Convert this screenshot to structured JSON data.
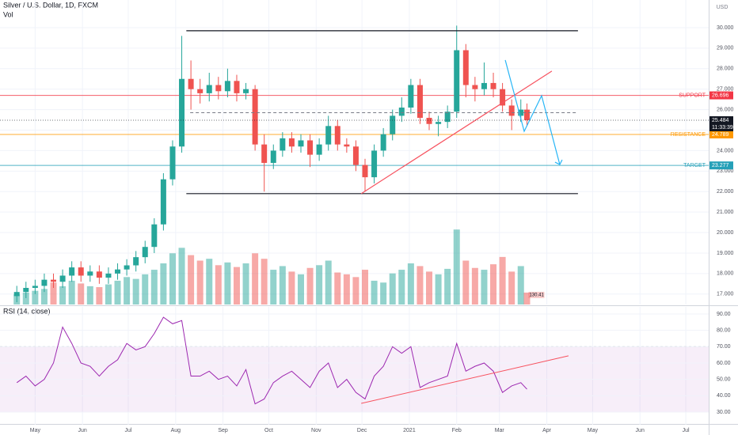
{
  "chart_data": {
    "type": "candlestick",
    "title": "Silver / U.S. Dollar, 1D, FXCM",
    "volume_title": "Vol",
    "currency": "USD",
    "countdown": "11:33:39",
    "grid": true,
    "up_color": "#26a69a",
    "down_color": "#ef5350",
    "xlim": [
      7,
      471
    ],
    "xticks": [
      {
        "value": 30,
        "label": "May"
      },
      {
        "value": 61,
        "label": "Jun"
      },
      {
        "value": 91,
        "label": "Jul"
      },
      {
        "value": 122,
        "label": "Aug"
      },
      {
        "value": 153,
        "label": "Sep"
      },
      {
        "value": 183,
        "label": "Oct"
      },
      {
        "value": 214,
        "label": "Nov"
      },
      {
        "value": 244,
        "label": "Dec"
      },
      {
        "value": 275,
        "label": "2021"
      },
      {
        "value": 306,
        "label": "Feb"
      },
      {
        "value": 334,
        "label": "Mar"
      },
      {
        "value": 365,
        "label": "Apr"
      },
      {
        "value": 395,
        "label": "May"
      },
      {
        "value": 426,
        "label": "Jun"
      },
      {
        "value": 456,
        "label": "Jul"
      }
    ],
    "ylim": [
      16.49,
      31.35
    ],
    "yticks": [
      {
        "value": 17,
        "label": "17.000"
      },
      {
        "value": 18,
        "label": "18.000"
      },
      {
        "value": 19,
        "label": "19.000"
      },
      {
        "value": 20,
        "label": "20.000"
      },
      {
        "value": 21,
        "label": "21.000"
      },
      {
        "value": 22,
        "label": "22.000"
      },
      {
        "value": 23,
        "label": "23.000"
      },
      {
        "value": 24,
        "label": "24.000"
      },
      {
        "value": 25,
        "label": "25.000"
      },
      {
        "value": 26,
        "label": "26.000"
      },
      {
        "value": 27,
        "label": "27.000"
      },
      {
        "value": 28,
        "label": "28.000"
      },
      {
        "value": 29,
        "label": "29.000"
      },
      {
        "value": 30,
        "label": "30.000"
      }
    ],
    "x": [
      18,
      24,
      30,
      36,
      42,
      48,
      54,
      60,
      66,
      72,
      78,
      84,
      90,
      96,
      102,
      108,
      114,
      120,
      126,
      132,
      138,
      144,
      150,
      156,
      162,
      168,
      174,
      180,
      186,
      192,
      198,
      204,
      210,
      216,
      222,
      228,
      234,
      240,
      246,
      252,
      258,
      264,
      270,
      276,
      282,
      288,
      294,
      300,
      306,
      312,
      318,
      324,
      330,
      336,
      342,
      348,
      352
    ],
    "open": [
      16.9,
      17.1,
      17.3,
      17.4,
      17.7,
      17.6,
      17.9,
      18.3,
      17.9,
      18.1,
      17.8,
      18.0,
      18.2,
      18.4,
      18.8,
      19.3,
      20.4,
      22.6,
      24.2,
      27.5,
      27.0,
      26.8,
      27.2,
      26.9,
      27.4,
      26.8,
      27.0,
      24.3,
      23.4,
      24.0,
      24.6,
      24.2,
      24.5,
      23.8,
      24.3,
      25.2,
      24.3,
      24.2,
      23.3,
      22.7,
      24.0,
      24.8,
      25.7,
      26.1,
      27.2,
      25.6,
      25.3,
      25.4,
      25.9,
      28.9,
      27.2,
      27.0,
      27.3,
      27.0,
      26.2,
      25.7,
      26.0
    ],
    "high": [
      17.4,
      17.6,
      17.7,
      18.0,
      18.0,
      18.2,
      18.6,
      18.6,
      18.4,
      18.4,
      18.3,
      18.5,
      18.7,
      19.1,
      19.6,
      20.7,
      22.9,
      24.5,
      29.6,
      28.4,
      27.5,
      27.8,
      27.6,
      28.0,
      27.7,
      27.3,
      27.2,
      24.8,
      24.3,
      24.9,
      24.9,
      24.8,
      24.8,
      24.6,
      25.7,
      25.5,
      24.6,
      24.5,
      23.6,
      24.3,
      25.1,
      26.0,
      26.6,
      27.5,
      27.5,
      25.9,
      25.7,
      26.2,
      30.1,
      29.2,
      27.6,
      28.3,
      27.8,
      27.3,
      26.5,
      26.5,
      26.3
    ],
    "low": [
      16.6,
      16.8,
      17.0,
      17.1,
      17.3,
      17.3,
      17.6,
      17.6,
      17.6,
      17.5,
      17.5,
      17.7,
      17.9,
      18.1,
      18.5,
      19.0,
      20.1,
      22.3,
      23.9,
      26.0,
      26.3,
      26.4,
      26.5,
      26.6,
      26.4,
      26.5,
      24.0,
      22.0,
      23.1,
      23.7,
      23.9,
      23.9,
      23.2,
      23.5,
      24.0,
      24.0,
      23.9,
      23.0,
      22.0,
      22.4,
      23.7,
      24.5,
      25.4,
      25.8,
      25.3,
      25.0,
      24.7,
      25.1,
      25.6,
      26.6,
      26.4,
      26.7,
      26.6,
      25.9,
      25.0,
      25.4,
      25.2
    ],
    "close": [
      17.1,
      17.3,
      17.4,
      17.7,
      17.6,
      17.9,
      18.3,
      17.9,
      18.1,
      17.8,
      18.0,
      18.2,
      18.4,
      18.8,
      19.3,
      20.4,
      22.6,
      24.2,
      27.5,
      27.0,
      26.8,
      27.2,
      26.9,
      27.4,
      26.8,
      27.0,
      24.3,
      23.4,
      24.0,
      24.6,
      24.2,
      24.5,
      23.8,
      24.3,
      25.2,
      24.3,
      24.2,
      23.3,
      22.7,
      24.0,
      24.8,
      25.7,
      26.1,
      27.2,
      25.6,
      25.3,
      25.4,
      25.9,
      28.9,
      27.2,
      27.0,
      27.3,
      27.0,
      26.2,
      25.7,
      26.0,
      25.484
    ],
    "volume": [
      110,
      130,
      150,
      170,
      240,
      200,
      260,
      230,
      200,
      190,
      220,
      260,
      300,
      280,
      330,
      380,
      450,
      560,
      620,
      540,
      480,
      500,
      430,
      460,
      410,
      450,
      560,
      500,
      380,
      420,
      360,
      330,
      400,
      430,
      480,
      350,
      330,
      300,
      380,
      260,
      240,
      340,
      380,
      450,
      420,
      360,
      330,
      390,
      820,
      480,
      400,
      380,
      440,
      520,
      360,
      420,
      130.41
    ],
    "volume_lim": [
      0,
      3330
    ],
    "levels": [
      {
        "name": "SUPPORT",
        "value": 26.696,
        "color": "#f23645"
      },
      {
        "name": "RESISTANCE",
        "value": 24.789,
        "color": "#ff9800"
      },
      {
        "name": "TARGET",
        "value": 23.277,
        "color": "#26a0b8"
      }
    ],
    "drawings": [
      {
        "x": [
          129,
          385.4
        ],
        "y": [
          29.85,
          29.85
        ],
        "color": "#131722",
        "dash": false
      },
      {
        "x": [
          129,
          385.4
        ],
        "y": [
          21.9,
          21.9
        ],
        "color": "#131722",
        "dash": false
      },
      {
        "x": [
          131.5,
          385.4
        ],
        "y": [
          25.85,
          25.85
        ],
        "color": "#787b86",
        "dash": true
      },
      {
        "x": [
          243.5,
          368.3
        ],
        "y": [
          21.9,
          27.88
        ],
        "color": "#f7525f",
        "dash": false
      },
      {
        "x": [
          337.8,
          350.2,
          361.6,
          373.5
        ],
        "y": [
          28.42,
          24.94,
          26.68,
          23.32
        ],
        "color": "#29b6f6",
        "dash": false
      }
    ],
    "rsi": {
      "title": "RSI (14, close)",
      "color": "#9c27b0",
      "values": [
        48,
        52,
        46,
        50,
        60,
        82,
        72,
        60,
        58,
        52,
        58,
        62,
        72,
        68,
        70,
        78,
        88,
        84,
        86,
        52,
        52,
        55,
        50,
        52,
        46,
        56,
        35,
        38,
        48,
        52,
        55,
        50,
        45,
        55,
        60,
        45,
        50,
        42,
        38,
        52,
        58,
        70,
        66,
        70,
        45,
        48,
        50,
        52,
        72,
        55,
        58,
        60,
        55,
        42,
        46,
        48,
        44
      ],
      "ylim": [
        22.26,
        94.35
      ],
      "yticks": [
        {
          "value": 30,
          "label": "30.00"
        },
        {
          "value": 40,
          "label": "40.00"
        },
        {
          "value": 50,
          "label": "50.00"
        },
        {
          "value": 60,
          "label": "60.00"
        },
        {
          "value": 70,
          "label": "70.00"
        },
        {
          "value": 80,
          "label": "80.00"
        },
        {
          "value": 90,
          "label": "90.00"
        }
      ],
      "band": [
        30,
        70
      ],
      "trendline": {
        "x": [
          243.5,
          379.2
        ],
        "y": [
          35.3,
          64.4
        ],
        "color": "#f7525f"
      }
    }
  }
}
